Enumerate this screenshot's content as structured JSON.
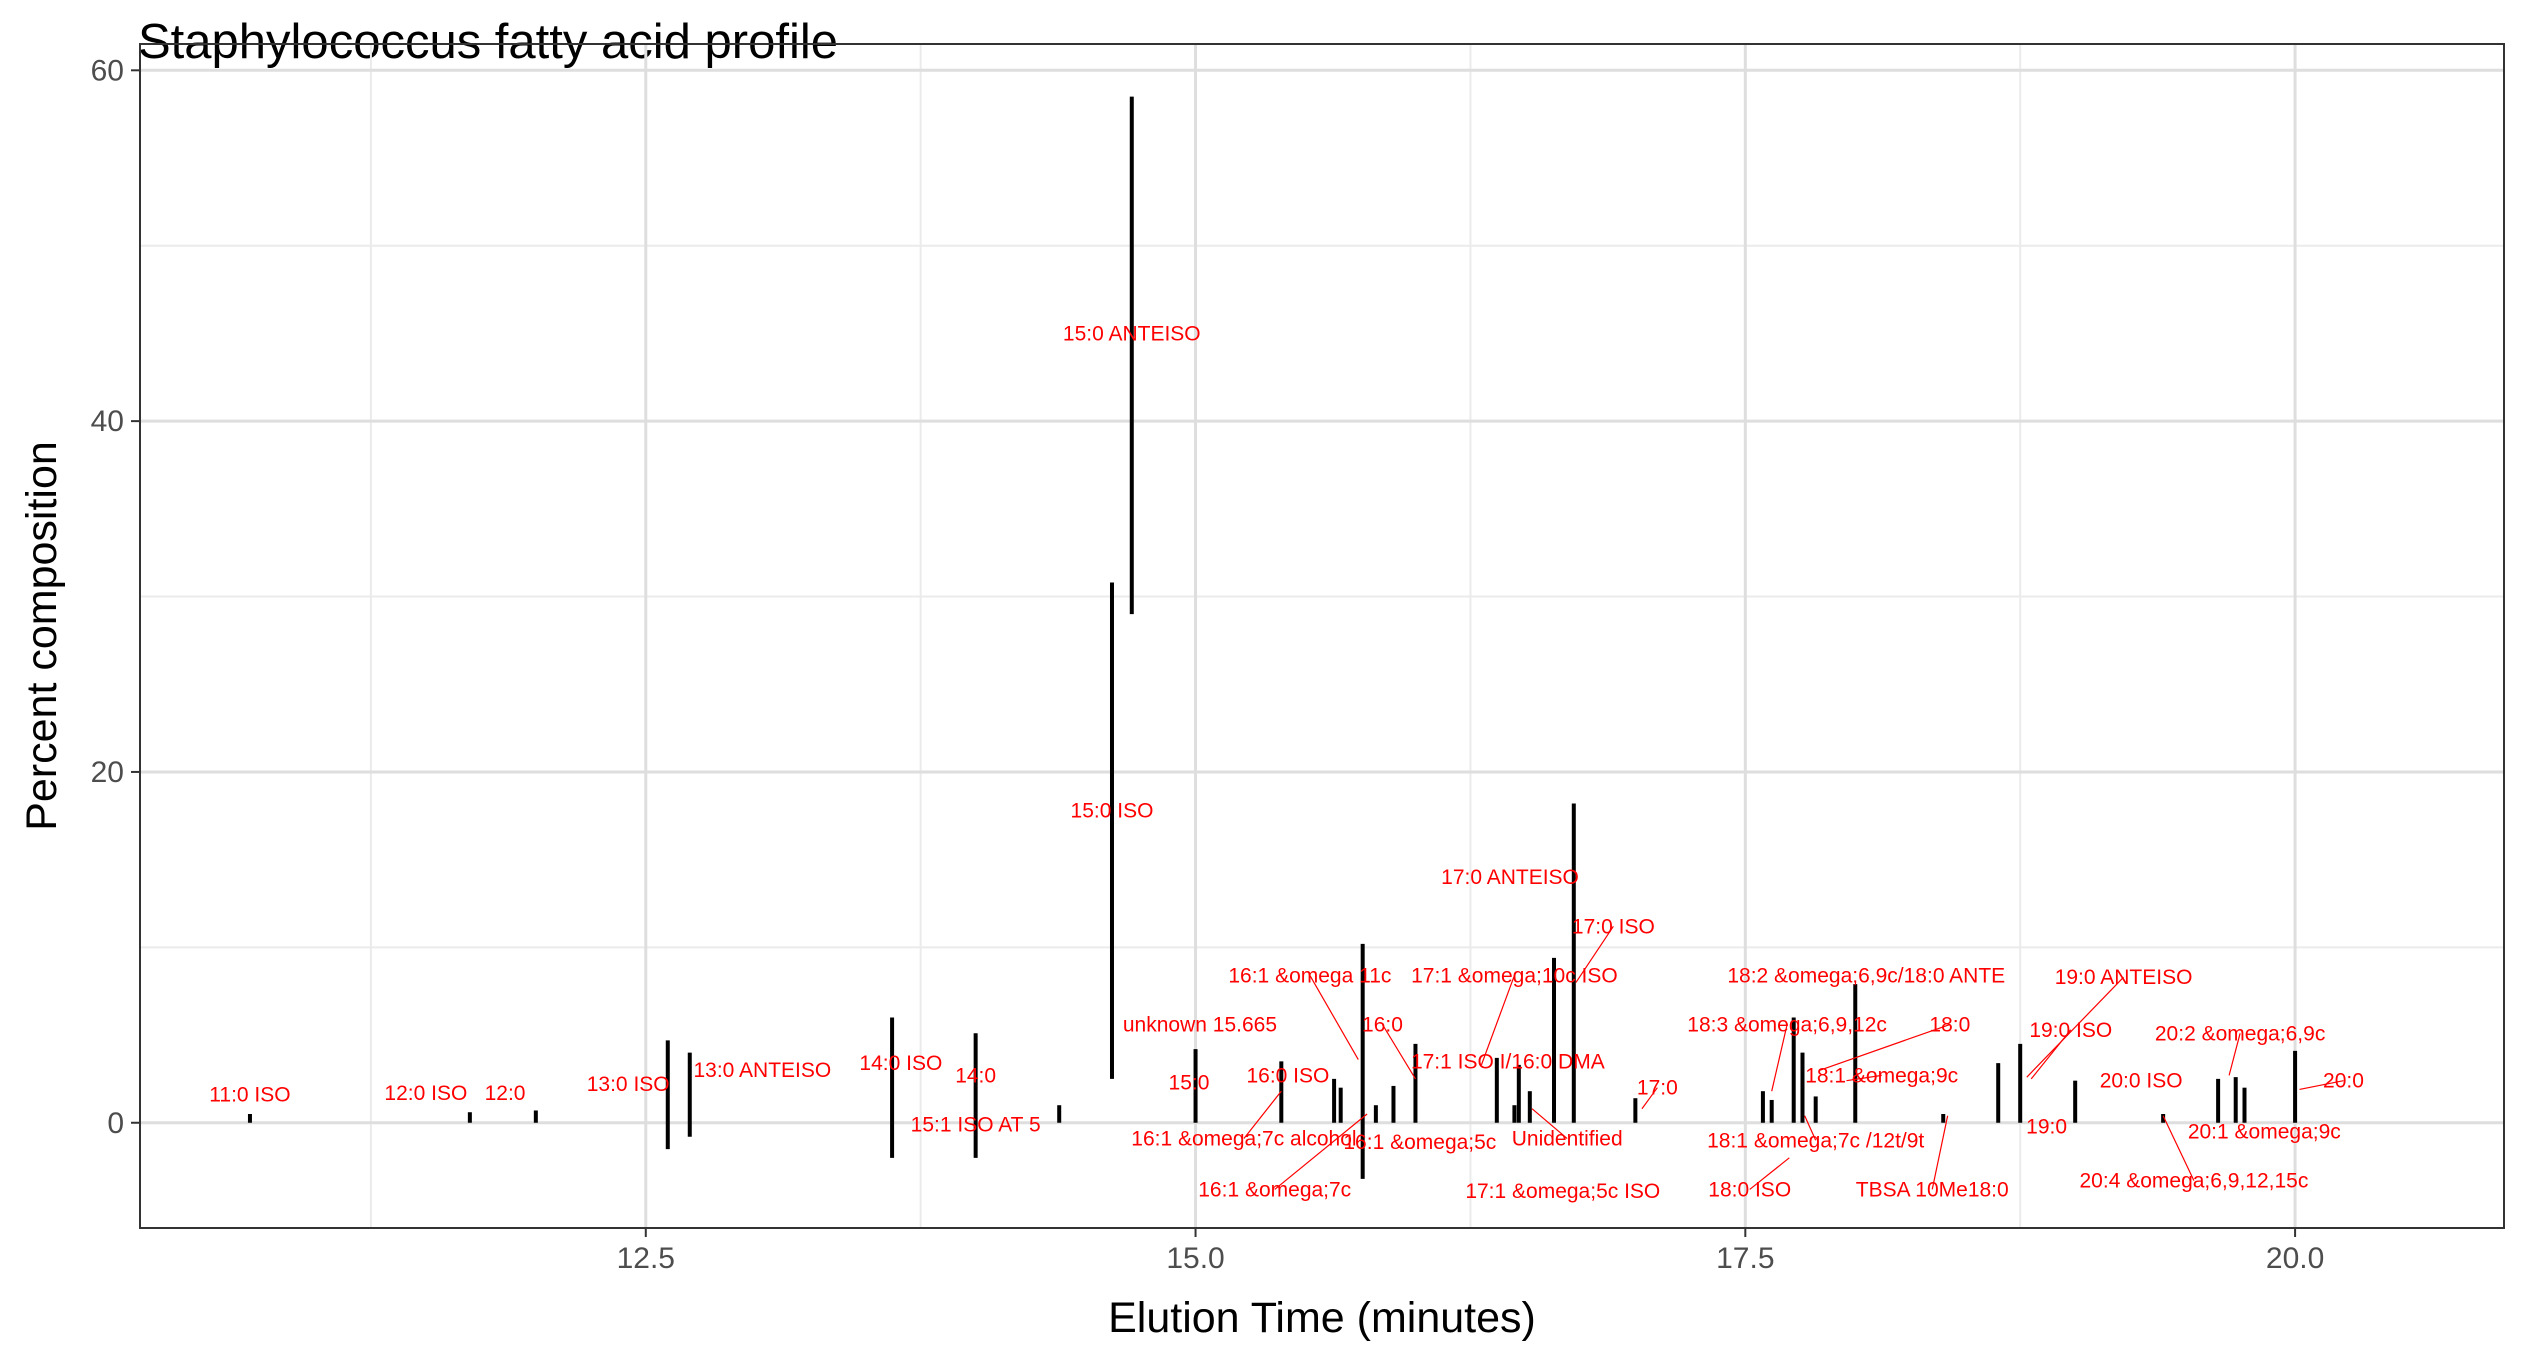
{
  "chart_data": {
    "type": "bar",
    "title": "Staphylococcus fatty acid profile",
    "xlabel": "Elution Time (minutes)",
    "ylabel": "Percent composition",
    "xlim": [
      10.2,
      20.95
    ],
    "ylim": [
      -6,
      61.5
    ],
    "xticks": [
      12.5,
      15.0,
      17.5,
      20.0
    ],
    "xtick_labels": [
      "12.5",
      "15.0",
      "17.5",
      "20.0"
    ],
    "yticks": [
      0,
      20,
      40,
      60
    ],
    "ytick_labels": [
      "0",
      "20",
      "40",
      "60"
    ],
    "grid": true,
    "bars": [
      {
        "x": 10.7,
        "low": 0,
        "high": 0.5
      },
      {
        "x": 11.7,
        "low": 0,
        "high": 0.6
      },
      {
        "x": 12.0,
        "low": 0,
        "high": 0.7
      },
      {
        "x": 12.6,
        "low": -1.5,
        "high": 4.7
      },
      {
        "x": 12.7,
        "low": -0.8,
        "high": 4.0
      },
      {
        "x": 13.62,
        "low": -2.0,
        "high": 6.0
      },
      {
        "x": 14.0,
        "low": -2.0,
        "high": 5.1
      },
      {
        "x": 14.38,
        "low": 0,
        "high": 1.0
      },
      {
        "x": 14.62,
        "low": 2.5,
        "high": 30.8
      },
      {
        "x": 14.71,
        "low": 29.0,
        "high": 58.5
      },
      {
        "x": 15.0,
        "low": 0,
        "high": 4.2
      },
      {
        "x": 15.39,
        "low": 0,
        "high": 3.5
      },
      {
        "x": 15.63,
        "low": 0,
        "high": 2.5
      },
      {
        "x": 15.66,
        "low": 0,
        "high": 2.0
      },
      {
        "x": 15.76,
        "low": -3.2,
        "high": 10.2
      },
      {
        "x": 15.82,
        "low": 0,
        "high": 1.0
      },
      {
        "x": 15.9,
        "low": 0,
        "high": 2.1
      },
      {
        "x": 16.0,
        "low": 0,
        "high": 4.5
      },
      {
        "x": 16.37,
        "low": 0,
        "high": 3.7
      },
      {
        "x": 16.45,
        "low": 0,
        "high": 1.0
      },
      {
        "x": 16.47,
        "low": 0,
        "high": 3.3
      },
      {
        "x": 16.52,
        "low": 0,
        "high": 1.8
      },
      {
        "x": 16.63,
        "low": 0,
        "high": 9.4
      },
      {
        "x": 16.72,
        "low": 0,
        "high": 18.2
      },
      {
        "x": 17.0,
        "low": 0,
        "high": 1.4
      },
      {
        "x": 17.58,
        "low": 0,
        "high": 1.8
      },
      {
        "x": 17.62,
        "low": 0,
        "high": 1.3
      },
      {
        "x": 17.72,
        "low": 0,
        "high": 6.0
      },
      {
        "x": 17.76,
        "low": 0,
        "high": 4.0
      },
      {
        "x": 17.82,
        "low": 0,
        "high": 1.5
      },
      {
        "x": 18.0,
        "low": 0,
        "high": 7.9
      },
      {
        "x": 18.4,
        "low": 0,
        "high": 0.5
      },
      {
        "x": 18.65,
        "low": 0,
        "high": 3.4
      },
      {
        "x": 18.75,
        "low": 0,
        "high": 4.5
      },
      {
        "x": 19.0,
        "low": 0,
        "high": 2.4
      },
      {
        "x": 19.4,
        "low": 0,
        "high": 0.5
      },
      {
        "x": 19.65,
        "low": 0,
        "high": 2.5
      },
      {
        "x": 19.73,
        "low": 0,
        "high": 2.6
      },
      {
        "x": 19.77,
        "low": 0,
        "high": 2.0
      },
      {
        "x": 20.0,
        "low": 0,
        "high": 4.1
      }
    ],
    "annotations": [
      {
        "text": "11:0 ISO",
        "x": 10.7,
        "y": 1.6
      },
      {
        "text": "12:0 ISO",
        "x": 11.5,
        "y": 1.7
      },
      {
        "text": "12:0",
        "x": 11.86,
        "y": 1.7
      },
      {
        "text": "13:0 ISO",
        "x": 12.42,
        "y": 2.2
      },
      {
        "text": "13:0 ANTEISO",
        "x": 13.03,
        "y": 3.0
      },
      {
        "text": "14:0 ISO",
        "x": 13.66,
        "y": 3.4
      },
      {
        "text": "15:1 ISO AT 5",
        "x": 14.0,
        "y": -0.1
      },
      {
        "text": "14:0",
        "x": 14.0,
        "y": 2.7
      },
      {
        "text": "15:0 ANTEISO",
        "x": 14.71,
        "y": 45.0
      },
      {
        "text": "15:0 ISO",
        "x": 14.62,
        "y": 17.8
      },
      {
        "text": "15:0",
        "x": 14.97,
        "y": 2.3
      },
      {
        "text": "unknown 15.665",
        "x": 15.02,
        "y": 5.6
      },
      {
        "text": "16:0 ISO",
        "x": 15.42,
        "y": 2.7
      },
      {
        "text": "16:1 &omega;7c alcohol",
        "x": 15.22,
        "y": -0.9,
        "lx": 15.39,
        "ly": 1.8
      },
      {
        "text": "16:1 &omega 11c",
        "x": 15.52,
        "y": 8.4,
        "lx": 15.74,
        "ly": 3.6
      },
      {
        "text": "16:0",
        "x": 15.85,
        "y": 5.6,
        "lx": 16.0,
        "ly": 2.5
      },
      {
        "text": "16:1 &omega;5c",
        "x": 16.02,
        "y": -1.1
      },
      {
        "text": "16:1 &omega;7c",
        "x": 15.36,
        "y": -3.8,
        "lx": 15.78,
        "ly": 0.5
      },
      {
        "text": "17:0 ANTEISO",
        "x": 16.43,
        "y": 14.0
      },
      {
        "text": "17:0 ISO",
        "x": 16.9,
        "y": 11.2,
        "lx": 16.73,
        "ly": 8.0
      },
      {
        "text": "17:1 &omega;10c ISO",
        "x": 16.45,
        "y": 8.4,
        "lx": 16.3,
        "ly": 3.3
      },
      {
        "text": "17:1 ISO I/16:0 DMA",
        "x": 16.42,
        "y": 3.5
      },
      {
        "text": "Unidentified",
        "x": 16.69,
        "y": -0.9,
        "lx": 16.53,
        "ly": 0.8
      },
      {
        "text": "17:1 &omega;5c ISO",
        "x": 16.67,
        "y": -3.9
      },
      {
        "text": "17:0",
        "x": 17.1,
        "y": 2.0,
        "lx": 17.03,
        "ly": 0.8
      },
      {
        "text": "18:2 &omega;6,9c/18:0 ANTE",
        "x": 18.05,
        "y": 8.4
      },
      {
        "text": "18:3 &omega;6,9,12c",
        "x": 17.69,
        "y": 5.6,
        "lx": 17.62,
        "ly": 1.8
      },
      {
        "text": "18:0",
        "x": 18.43,
        "y": 5.6,
        "lx": 17.84,
        "ly": 3.0
      },
      {
        "text": "18:1 &omega;9c",
        "x": 18.12,
        "y": 2.7,
        "lx": 17.96,
        "ly": 2.4
      },
      {
        "text": "18:1 &omega;7c /12t/9t",
        "x": 17.82,
        "y": -1.0,
        "lx": 17.77,
        "ly": 0.4
      },
      {
        "text": "18:0 ISO",
        "x": 17.52,
        "y": -3.8,
        "lx": 17.7,
        "ly": -2.0
      },
      {
        "text": "TBSA 10Me18:0",
        "x": 18.35,
        "y": -3.8,
        "lx": 18.42,
        "ly": 0.4
      },
      {
        "text": "19:0 ANTEISO",
        "x": 19.22,
        "y": 8.3,
        "lx": 18.78,
        "ly": 2.6
      },
      {
        "text": "19:0 ISO",
        "x": 18.98,
        "y": 5.3,
        "lx": 18.8,
        "ly": 2.5
      },
      {
        "text": "19:0",
        "x": 18.87,
        "y": -0.2
      },
      {
        "text": "20:0 ISO",
        "x": 19.3,
        "y": 2.4
      },
      {
        "text": "20:2 &omega;6,9c",
        "x": 19.75,
        "y": 5.1,
        "lx": 19.7,
        "ly": 2.7
      },
      {
        "text": "20:1 &omega;9c",
        "x": 19.86,
        "y": -0.5
      },
      {
        "text": "20:0",
        "x": 20.22,
        "y": 2.4,
        "lx": 20.02,
        "ly": 1.9
      },
      {
        "text": "20:4 &omega;6,9,12,15c",
        "x": 19.54,
        "y": -3.3,
        "lx": 19.4,
        "ly": 0.4
      }
    ]
  }
}
